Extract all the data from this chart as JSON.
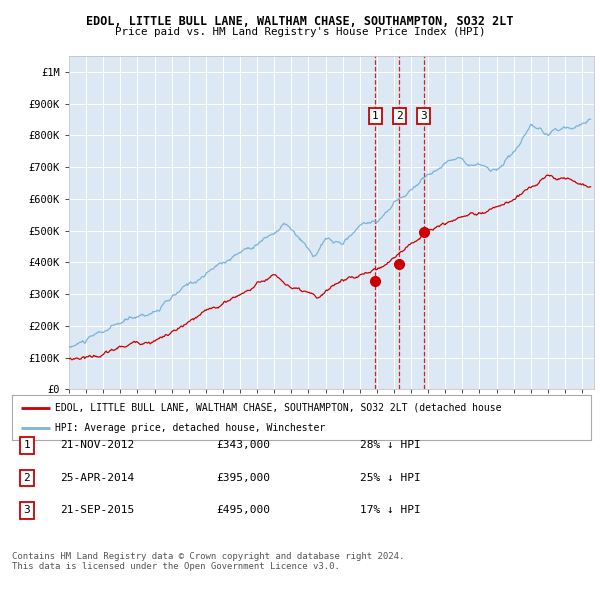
{
  "title_line1": "EDOL, LITTLE BULL LANE, WALTHAM CHASE, SOUTHAMPTON, SO32 2LT",
  "title_line2": "Price paid vs. HM Land Registry's House Price Index (HPI)",
  "hpi_color": "#7ab4d8",
  "price_color": "#cc0000",
  "plot_bg_color": "#dce9f5",
  "grid_color": "#ffffff",
  "ylim": [
    0,
    1050000
  ],
  "yticks": [
    0,
    100000,
    200000,
    300000,
    400000,
    500000,
    600000,
    700000,
    800000,
    900000,
    1000000
  ],
  "ytick_labels": [
    "£0",
    "£100K",
    "£200K",
    "£300K",
    "£400K",
    "£500K",
    "£600K",
    "£700K",
    "£800K",
    "£900K",
    "£1M"
  ],
  "sale_dates": [
    2012.9,
    2014.32,
    2015.73
  ],
  "sale_prices": [
    343000,
    395000,
    495000
  ],
  "sale_labels": [
    "1",
    "2",
    "3"
  ],
  "legend_red_label": "EDOL, LITTLE BULL LANE, WALTHAM CHASE, SOUTHAMPTON, SO32 2LT (detached house",
  "legend_blue_label": "HPI: Average price, detached house, Winchester",
  "table_rows": [
    {
      "num": "1",
      "date": "21-NOV-2012",
      "price": "£343,000",
      "note": "28% ↓ HPI"
    },
    {
      "num": "2",
      "date": "25-APR-2014",
      "price": "£395,000",
      "note": "25% ↓ HPI"
    },
    {
      "num": "3",
      "date": "21-SEP-2015",
      "price": "£495,000",
      "note": "17% ↓ HPI"
    }
  ],
  "footer": "Contains HM Land Registry data © Crown copyright and database right 2024.\nThis data is licensed under the Open Government Licence v3.0."
}
